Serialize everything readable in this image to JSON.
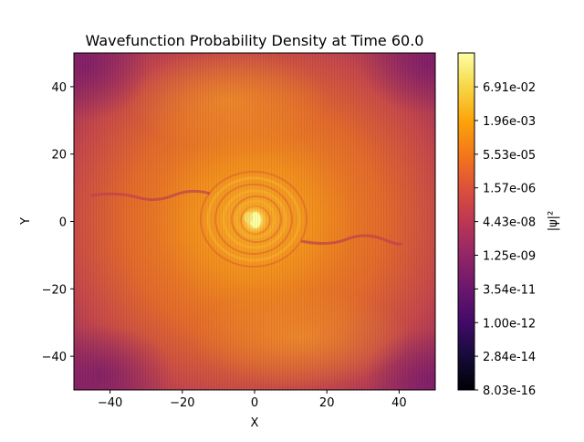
{
  "chart_data": {
    "type": "heatmap",
    "title": "Wavefunction Probability Density at Time 60.0",
    "xlabel": "X",
    "ylabel": "Y",
    "xlim": [
      -50,
      50
    ],
    "ylim": [
      -50,
      50
    ],
    "x_ticks": [
      "−40",
      "−20",
      "0",
      "20",
      "40"
    ],
    "y_ticks": [
      "40",
      "20",
      "0",
      "−20",
      "−40"
    ],
    "x_tick_values": [
      -40,
      -20,
      0,
      20,
      40
    ],
    "y_tick_values": [
      40,
      20,
      0,
      -20,
      -40
    ],
    "colormap": "inferno",
    "color_scale": "log",
    "colorbar": {
      "label": "|ψ|²",
      "range": [
        8.03e-16,
        2.5
      ],
      "ticks": [
        "8.03e-16",
        "2.84e-14",
        "1.00e-12",
        "3.54e-11",
        "1.25e-09",
        "4.43e-08",
        "1.57e-06",
        "5.53e-05",
        "1.96e-03",
        "6.91e-02"
      ],
      "tick_values": [
        8.03e-16,
        2.84e-14,
        1e-12,
        3.54e-11,
        1.25e-09,
        4.43e-08,
        1.57e-06,
        5.53e-05,
        0.00196,
        0.0691
      ]
    },
    "features": {
      "peak_center": [
        0,
        0
      ],
      "peak_value": 0.5,
      "background_value": 1e-06,
      "corner_value": 1e-09
    }
  }
}
